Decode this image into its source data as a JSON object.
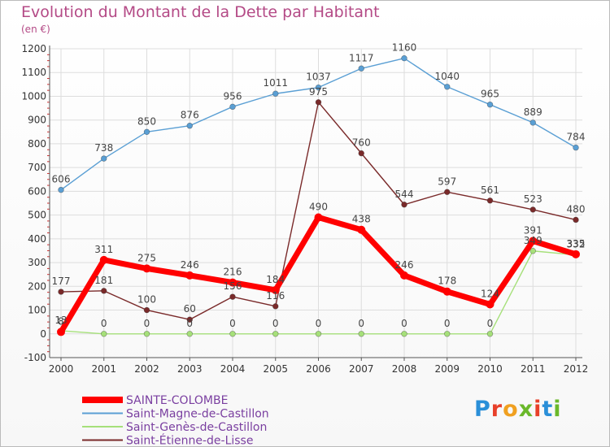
{
  "chart_data": {
    "type": "line",
    "title": "Evolution du Montant de la Dette par Habitant",
    "subtitle": "(en €)",
    "x": [
      "2000",
      "2001",
      "2002",
      "2003",
      "2004",
      "2005",
      "2006",
      "2007",
      "2008",
      "2009",
      "2010",
      "2011",
      "2012"
    ],
    "ylim": [
      -100,
      1200
    ],
    "yticks": [
      -100,
      0,
      100,
      200,
      300,
      400,
      500,
      600,
      700,
      800,
      900,
      1000,
      1100,
      1200
    ],
    "grid": true,
    "legend_position": "bottom-left",
    "series": [
      {
        "name": "SAINTE-COLOMBE",
        "color": "#ff0000",
        "values": [
          8,
          311,
          275,
          246,
          216,
          184,
          490,
          438,
          246,
          178,
          124,
          391,
          335
        ]
      },
      {
        "name": "Saint-Magne-de-Castillon",
        "color": "#5a9fd4",
        "values": [
          606,
          738,
          850,
          876,
          956,
          1011,
          1037,
          1117,
          1160,
          1040,
          965,
          889,
          784
        ]
      },
      {
        "name": "Saint-Genès-de-Castillon",
        "color": "#a6e07a",
        "values": [
          13,
          0,
          0,
          0,
          0,
          0,
          0,
          0,
          0,
          0,
          0,
          349,
          332
        ]
      },
      {
        "name": "Saint-Étienne-de-Lisse",
        "color": "#7a2a2a",
        "values": [
          177,
          181,
          100,
          60,
          156,
          116,
          975,
          760,
          544,
          597,
          561,
          523,
          480
        ]
      }
    ]
  },
  "logo": {
    "letters": [
      "P",
      "r",
      "o",
      "x",
      "i",
      "t",
      "i"
    ],
    "colors": [
      "#2a8fd8",
      "#e8402a",
      "#f0a020",
      "#6ab82a",
      "#e8402a",
      "#2a8fd8",
      "#6ab82a"
    ]
  }
}
